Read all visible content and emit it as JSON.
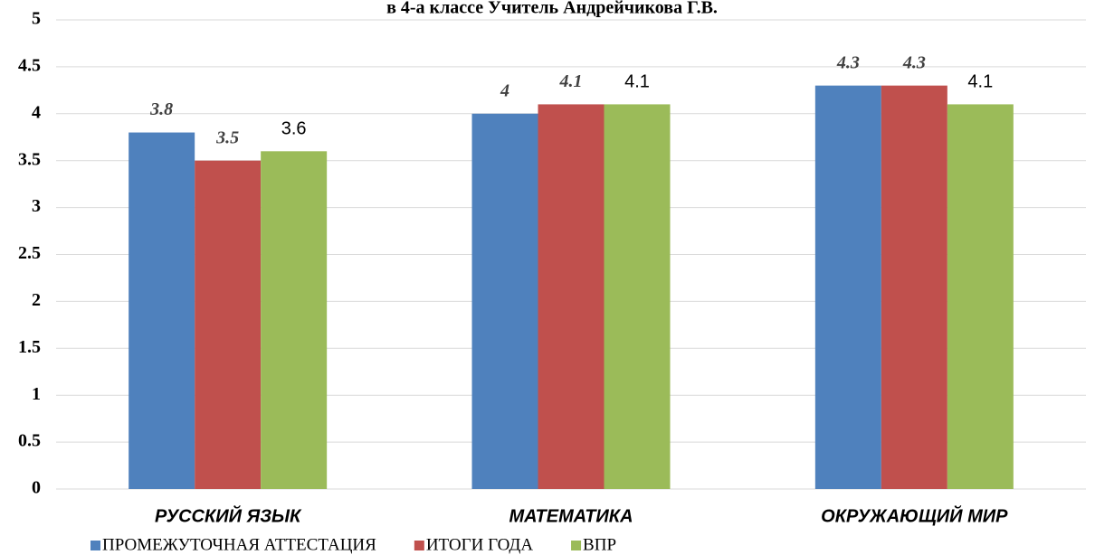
{
  "chart_data": {
    "type": "bar",
    "title": "в 4-а классе Учитель Андрейчикова Г.В.",
    "categories": [
      "РУССКИЙ ЯЗЫК",
      "МАТЕМАТИКА",
      "ОКРУЖАЮЩИЙ МИР"
    ],
    "series": [
      {
        "name": "ПРОМЕЖУТОЧНАЯ АТТЕСТАЦИЯ",
        "color": "#4f81bd",
        "values": [
          3.8,
          4,
          4.3
        ]
      },
      {
        "name": "ИТОГИ ГОДА",
        "color": "#c0504d",
        "values": [
          3.5,
          4.1,
          4.3
        ]
      },
      {
        "name": "ВПР",
        "color": "#9bbb59",
        "values": [
          3.6,
          4.1,
          4.1
        ]
      }
    ],
    "ylim": [
      0,
      5
    ],
    "yticks": [
      0,
      0.5,
      1,
      1.5,
      2,
      2.5,
      3,
      3.5,
      4,
      4.5,
      5
    ],
    "grid": true,
    "legend": "bottom"
  }
}
